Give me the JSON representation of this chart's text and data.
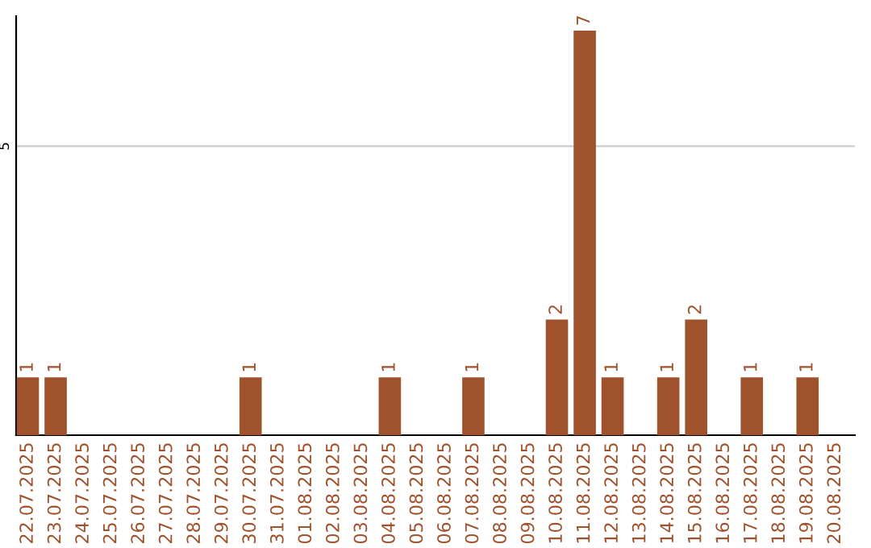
{
  "chart_data": {
    "type": "bar",
    "categories": [
      "22.07.2025",
      "23.07.2025",
      "24.07.2025",
      "25.07.2025",
      "26.07.2025",
      "27.07.2025",
      "28.07.2025",
      "29.07.2025",
      "30.07.2025",
      "31.07.2025",
      "01.08.2025",
      "02.08.2025",
      "03.08.2025",
      "04.08.2025",
      "05.08.2025",
      "06.08.2025",
      "07.08.2025",
      "08.08.2025",
      "09.08.2025",
      "10.08.2025",
      "11.08.2025",
      "12.08.2025",
      "13.08.2025",
      "14.08.2025",
      "15.08.2025",
      "16.08.2025",
      "17.08.2025",
      "18.08.2025",
      "19.08.2025",
      "20.08.2025"
    ],
    "values": [
      1,
      1,
      0,
      0,
      0,
      0,
      0,
      0,
      1,
      0,
      0,
      0,
      0,
      1,
      0,
      0,
      1,
      0,
      0,
      2,
      7,
      1,
      0,
      1,
      2,
      0,
      1,
      0,
      1,
      0
    ],
    "value_labels": [
      "1",
      "1",
      null,
      null,
      null,
      null,
      null,
      null,
      "1",
      null,
      null,
      null,
      null,
      "1",
      null,
      null,
      "1",
      null,
      null,
      "2",
      "7",
      "1",
      null,
      "1",
      "2",
      null,
      "1",
      null,
      "1",
      null
    ],
    "color": "#a0522d",
    "ylim": [
      0,
      7.25
    ],
    "yticks": [
      5
    ],
    "grid": "y",
    "legend": false
  }
}
